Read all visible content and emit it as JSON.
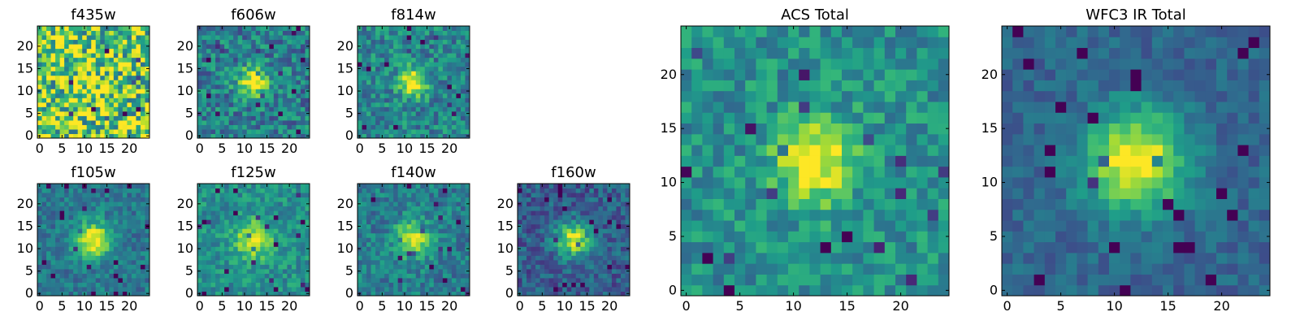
{
  "chart_data": {
    "type": "heatmap",
    "grid_size": 25,
    "colormap": "viridis",
    "panels": [
      {
        "id": "f435w",
        "title": "f435w",
        "center": [
          12,
          12
        ],
        "signal": 0.05,
        "noise": 0.42,
        "base": 0.78,
        "spread": 3.0,
        "xticks": [
          "0",
          "5",
          "10",
          "15",
          "20"
        ],
        "yticks": [
          "0",
          "5",
          "10",
          "15",
          "20"
        ]
      },
      {
        "id": "f606w",
        "title": "f606w",
        "center": [
          12,
          12
        ],
        "signal": 0.6,
        "noise": 0.22,
        "base": 0.42,
        "spread": 2.4,
        "xticks": [
          "0",
          "5",
          "10",
          "15",
          "20"
        ],
        "yticks": [
          "0",
          "5",
          "10",
          "15",
          "20"
        ]
      },
      {
        "id": "f814w",
        "title": "f814w",
        "center": [
          12,
          12
        ],
        "signal": 0.6,
        "noise": 0.2,
        "base": 0.45,
        "spread": 2.2,
        "xticks": [
          "0",
          "5",
          "10",
          "15",
          "20"
        ],
        "yticks": [
          "0",
          "5",
          "10",
          "15",
          "20"
        ]
      },
      {
        "id": "f105w",
        "title": "f105w",
        "center": [
          12,
          12
        ],
        "signal": 0.62,
        "noise": 0.14,
        "base": 0.4,
        "spread": 2.8,
        "xticks": [
          "0",
          "5",
          "10",
          "15",
          "20"
        ],
        "yticks": [
          "0",
          "5",
          "10",
          "15",
          "20"
        ]
      },
      {
        "id": "f125w",
        "title": "f125w",
        "center": [
          12,
          12
        ],
        "signal": 0.48,
        "noise": 0.15,
        "base": 0.5,
        "spread": 2.8,
        "xticks": [
          "0",
          "5",
          "10",
          "15",
          "20"
        ],
        "yticks": [
          "0",
          "5",
          "10",
          "15",
          "20"
        ]
      },
      {
        "id": "f140w",
        "title": "f140w",
        "center": [
          12,
          12
        ],
        "signal": 0.55,
        "noise": 0.16,
        "base": 0.42,
        "spread": 2.8,
        "xticks": [
          "0",
          "5",
          "10",
          "15",
          "20"
        ],
        "yticks": [
          "0",
          "5",
          "10",
          "15",
          "20"
        ]
      },
      {
        "id": "f160w",
        "title": "f160w",
        "center": [
          12,
          12
        ],
        "signal": 0.65,
        "noise": 0.16,
        "base": 0.3,
        "spread": 2.6,
        "xticks": [
          "0",
          "5",
          "10",
          "15",
          "20"
        ],
        "yticks": [
          "0",
          "5",
          "10",
          "15",
          "20"
        ]
      },
      {
        "id": "acs",
        "title": "ACS Total",
        "center": [
          12,
          12
        ],
        "signal": 0.55,
        "noise": 0.17,
        "base": 0.5,
        "spread": 2.6,
        "xticks": [
          "0",
          "5",
          "10",
          "15",
          "20"
        ],
        "yticks": [
          "0",
          "5",
          "10",
          "15",
          "20"
        ]
      },
      {
        "id": "wfc3",
        "title": "WFC3 IR Total",
        "center": [
          12,
          12
        ],
        "signal": 0.7,
        "noise": 0.1,
        "base": 0.33,
        "spread": 3.2,
        "xticks": [
          "0",
          "5",
          "10",
          "15",
          "20"
        ],
        "yticks": [
          "0",
          "5",
          "10",
          "15",
          "20"
        ]
      }
    ]
  }
}
